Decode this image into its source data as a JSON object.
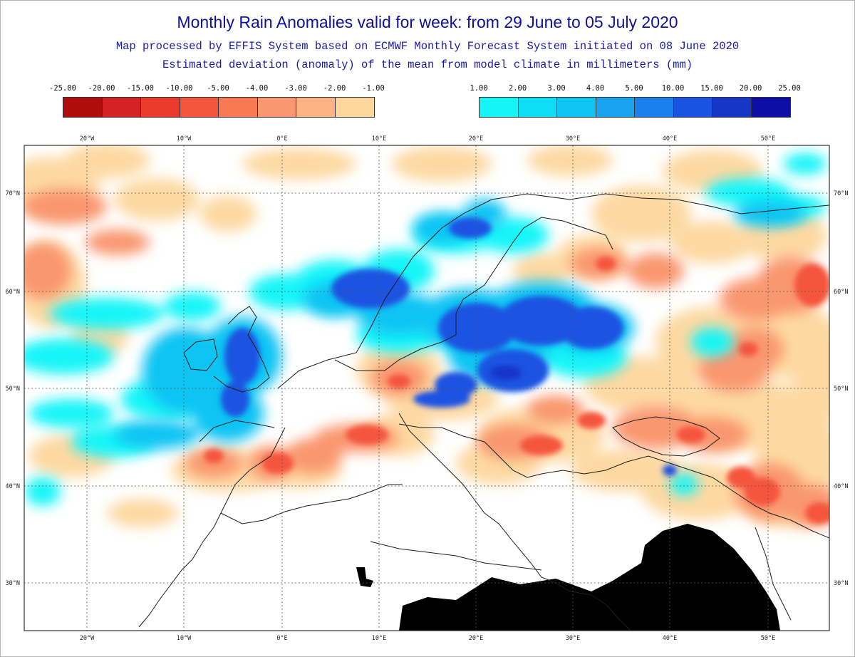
{
  "title": "Monthly Rain Anomalies valid for week: from 29 June to 05 July 2020",
  "subtitle_1": "Map processed by EFFIS System based on ECMWF Monthly Forecast System initiated on 08 June 2020",
  "subtitle_2": "Estimated deviation (anomaly) of the mean from model climate in millimeters (mm)",
  "legend_dry": {
    "labels": [
      "-25.00",
      "-20.00",
      "-15.00",
      "-10.00",
      "-5.00",
      "-4.00",
      "-3.00",
      "-2.00",
      "-1.00"
    ],
    "colors": [
      "#b10c0c",
      "#d52222",
      "#ec3a2c",
      "#f5553c",
      "#f77a55",
      "#f99770",
      "#fbb386",
      "#fdd79d"
    ]
  },
  "legend_wet": {
    "labels": [
      "1.00",
      "2.00",
      "3.00",
      "4.00",
      "5.00",
      "10.00",
      "15.00",
      "20.00",
      "25.00"
    ],
    "colors": [
      "#15f5f8",
      "#0fdcf5",
      "#10c4f3",
      "#1aa4f0",
      "#1a80ec",
      "#1a52e2",
      "#1636c8",
      "#0d0ea6"
    ]
  },
  "map": {
    "lon_ticks": [
      "20°W",
      "10°W",
      "0°E",
      "10°E",
      "20°E",
      "30°E",
      "40°E",
      "50°E"
    ],
    "lat_ticks": [
      "70°N",
      "60°N",
      "50°N",
      "40°N",
      "30°N"
    ],
    "mask_color": "#000000",
    "coast_color": "#1c1c1c",
    "grid_color": "#555555"
  }
}
